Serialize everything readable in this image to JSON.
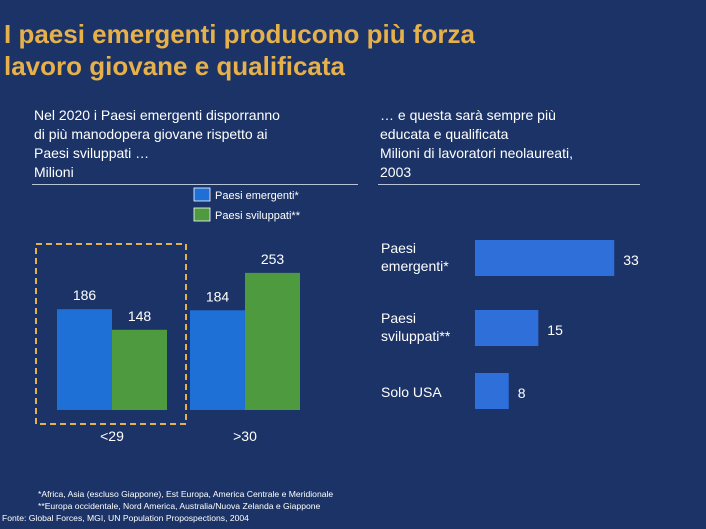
{
  "title_line1": "I paesi emergenti producono più forza",
  "title_line2": "lavoro giovane e qualificata",
  "colors": {
    "background": "#1b3366",
    "title": "#e6b04a",
    "emerging": "#1e6fd6",
    "developed": "#4e9a3f",
    "hbar": "#2e6fd9"
  },
  "chart_data": [
    {
      "type": "bar",
      "title_lines": [
        "Nel 2020 i Paesi emergenti disporranno",
        "di più manodopera giovane rispetto ai",
        "Paesi sviluppati …",
        "Milioni"
      ],
      "categories": [
        "<29",
        ">30"
      ],
      "series": [
        {
          "name": "Paesi emergenti*",
          "values": [
            186,
            184
          ]
        },
        {
          "name": "Paesi sviluppati**",
          "values": [
            148,
            253
          ]
        }
      ],
      "legend_position": "top-center"
    },
    {
      "type": "bar",
      "orientation": "horizontal",
      "title_lines": [
        "… e questa sarà sempre più",
        "educata e qualificata",
        "Milioni di lavoratori neolaureati,",
        "2003"
      ],
      "categories": [
        "Paesi emergenti*",
        "Paesi sviluppati**",
        "Solo USA"
      ],
      "category_lines": [
        [
          "Paesi",
          "emergenti*"
        ],
        [
          "Paesi",
          "sviluppati**"
        ],
        [
          "Solo USA"
        ]
      ],
      "values": [
        33,
        15,
        8
      ]
    }
  ],
  "footnotes": [
    "*Africa, Asia (escluso Giappone), Est Europa, America Centrale e Meridionale",
    "**Europa occidentale, Nord America, Australia/Nuova Zelanda e Giappone",
    "Fonte: Global Forces, MGI, UN Population Propospections, 2004"
  ]
}
